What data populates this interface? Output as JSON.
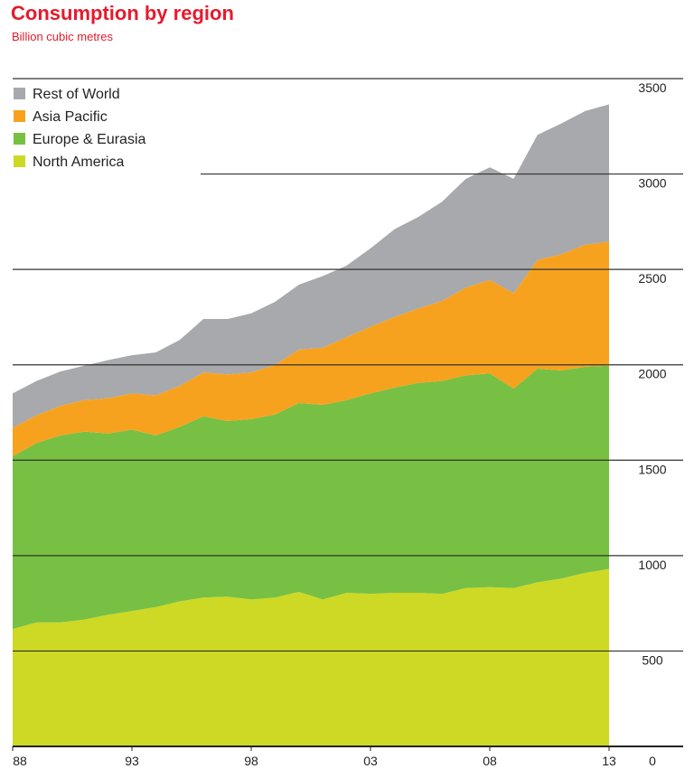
{
  "title": "Consumption by region",
  "subtitle": "Billion cubic metres",
  "chart_data": {
    "type": "area",
    "stacked": true,
    "x": [
      1988,
      1989,
      1990,
      1991,
      1992,
      1993,
      1994,
      1995,
      1996,
      1997,
      1998,
      1999,
      2000,
      2001,
      2002,
      2003,
      2004,
      2005,
      2006,
      2007,
      2008,
      2009,
      2010,
      2011,
      2012,
      2013
    ],
    "x_tick_values": [
      1988,
      1993,
      1998,
      2003,
      2008,
      2013
    ],
    "x_tick_labels": [
      "88",
      "93",
      "98",
      "03",
      "08",
      "13"
    ],
    "ylim": [
      0,
      3500
    ],
    "y_ticks": [
      0,
      500,
      1000,
      1500,
      2000,
      2500,
      3000,
      3500
    ],
    "y_axis_position": "right",
    "legend_position": "top-left",
    "series": [
      {
        "name": "North America",
        "color": "#cdd924",
        "values": [
          615,
          650,
          650,
          665,
          690,
          710,
          730,
          760,
          780,
          785,
          770,
          780,
          810,
          770,
          805,
          800,
          805,
          805,
          800,
          830,
          835,
          830,
          860,
          880,
          910,
          930
        ]
      },
      {
        "name": "Europe & Eurasia",
        "color": "#77c043",
        "values": [
          905,
          940,
          980,
          985,
          950,
          950,
          900,
          915,
          950,
          920,
          945,
          960,
          990,
          1020,
          1010,
          1050,
          1075,
          1100,
          1115,
          1115,
          1120,
          1045,
          1120,
          1090,
          1080,
          1065
        ]
      },
      {
        "name": "Asia Pacific",
        "color": "#f7a21f",
        "values": [
          150,
          145,
          155,
          165,
          185,
          190,
          210,
          215,
          230,
          245,
          245,
          260,
          280,
          300,
          330,
          350,
          370,
          390,
          420,
          460,
          490,
          500,
          570,
          610,
          640,
          650
        ]
      },
      {
        "name": "Rest of World",
        "color": "#a7a9ac",
        "values": [
          180,
          180,
          180,
          180,
          200,
          200,
          225,
          240,
          280,
          290,
          310,
          330,
          340,
          375,
          375,
          410,
          460,
          480,
          520,
          570,
          590,
          600,
          655,
          685,
          700,
          720
        ]
      }
    ]
  },
  "legend_order": [
    "Rest of World",
    "Asia Pacific",
    "Europe & Eurasia",
    "North America"
  ]
}
